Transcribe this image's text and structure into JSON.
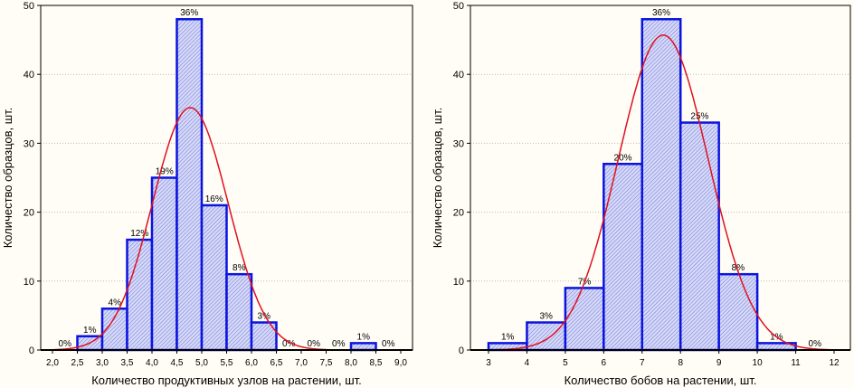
{
  "chart_data": [
    {
      "type": "bar",
      "title": "",
      "xlabel": "Количество продуктивных узлов на растении, шт.",
      "ylabel": "Количество образцов, шт.",
      "ylim": [
        0,
        50
      ],
      "yticks": [
        0,
        10,
        20,
        30,
        40,
        50
      ],
      "xlim": [
        2.0,
        9.0
      ],
      "xticks": [
        "2,0",
        "2,5",
        "3,0",
        "3,5",
        "4,0",
        "4,5",
        "5,0",
        "5,5",
        "6,0",
        "6,5",
        "7,0",
        "7,5",
        "8,0",
        "8,5",
        "9,0"
      ],
      "bin_width": 0.5,
      "bins_start": [
        2.0,
        2.5,
        3.0,
        3.5,
        4.0,
        4.5,
        5.0,
        5.5,
        6.0,
        6.5,
        7.0,
        7.5,
        8.0,
        8.5
      ],
      "values": [
        0,
        2,
        6,
        16,
        25,
        48,
        21,
        11,
        4,
        0,
        0,
        0,
        1,
        0
      ],
      "labels": [
        "0%",
        "1%",
        "4%",
        "12%",
        "19%",
        "36%",
        "16%",
        "8%",
        "3%",
        "0%",
        "0%",
        "0%",
        "1%",
        "0%"
      ],
      "normal_fit": {
        "mean": 4.77,
        "sd": 0.76,
        "n": 134
      },
      "grid": true
    },
    {
      "type": "bar",
      "title": "",
      "xlabel": "Количество бобов на растении, шт.",
      "ylabel": "Количество образцов, шт.",
      "ylim": [
        0,
        50
      ],
      "yticks": [
        0,
        10,
        20,
        30,
        40,
        50
      ],
      "xlim": [
        3,
        12
      ],
      "xticks": [
        "3",
        "4",
        "5",
        "6",
        "7",
        "8",
        "9",
        "10",
        "11",
        "12"
      ],
      "bin_width": 1,
      "bins_start": [
        3,
        4,
        5,
        6,
        7,
        8,
        9,
        10,
        11
      ],
      "values": [
        1,
        4,
        9,
        27,
        48,
        33,
        11,
        1,
        0
      ],
      "labels": [
        "1%",
        "3%",
        "7%",
        "20%",
        "36%",
        "25%",
        "8%",
        "1%",
        "0%"
      ],
      "normal_fit": {
        "mean": 7.55,
        "sd": 1.17,
        "n": 134
      },
      "grid": true
    }
  ],
  "colors": {
    "bar_fill": "#c8ccf4",
    "bar_stroke": "#0a14e0",
    "curve": "#e01020",
    "grid": "#bbbbbb"
  }
}
